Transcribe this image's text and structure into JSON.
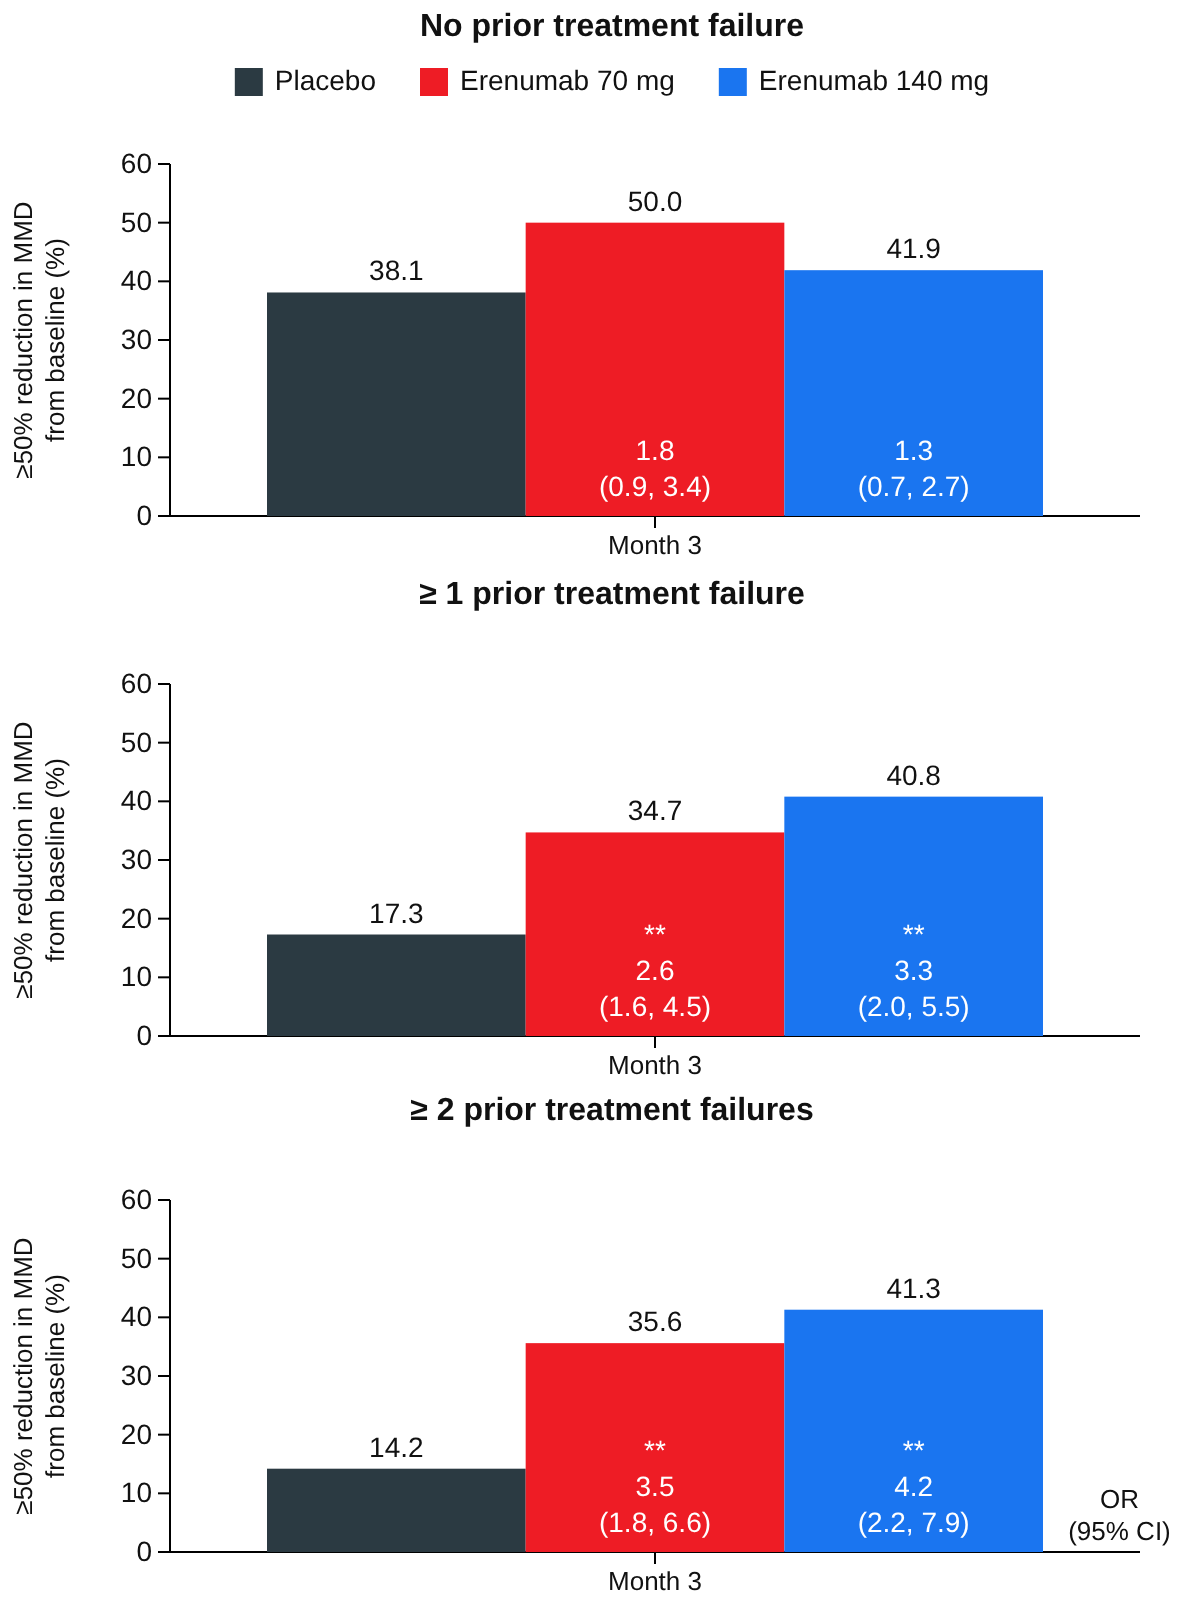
{
  "chart_data": [
    {
      "type": "bar",
      "title": "No prior treatment failure",
      "ylabel": "≥50% reduction in MMD from baseline (%)",
      "categories": [
        "Month 3"
      ],
      "series": [
        {
          "name": "Placebo",
          "color": "#2b3a42",
          "values": [
            38.1
          ]
        },
        {
          "name": "Erenumab 70 mg",
          "color": "#ee1c25",
          "values": [
            50.0
          ],
          "value_labels": [
            "50.0"
          ]
        },
        {
          "name": "Erenumab 140 mg",
          "color": "#1a75f0",
          "values": [
            41.9
          ]
        }
      ],
      "ylim": [
        0,
        60
      ],
      "yticks": [
        0,
        10,
        20,
        30,
        40,
        50,
        60
      ],
      "data_labels": true,
      "legend": "top",
      "annotations": [
        "1.8\n(0.9, 3.4)",
        "1.3\n(0.7, 2.7)"
      ]
    },
    {
      "type": "bar",
      "title": "≥ 1 prior treatment failure",
      "ylabel": "≥50% reduction in MMD from baseline (%)",
      "categories": [
        "Month 3"
      ],
      "series": [
        {
          "color": "#2b3a42",
          "values": [
            17.3
          ]
        },
        {
          "color": "#ee1c25",
          "values": [
            34.7
          ]
        },
        {
          "color": "#1a75f0",
          "values": [
            40.8
          ]
        }
      ],
      "ylim": [
        0,
        60
      ],
      "yticks": [
        0,
        10,
        20,
        30,
        40,
        50,
        60
      ],
      "data_labels": true,
      "annotations": [
        "**\n2.6\n(1.6, 4.5)",
        "**\n3.3\n(2.0, 5.5)"
      ]
    },
    {
      "type": "bar",
      "title": "≥ 2 prior treatment failures",
      "ylabel": "≥50% reduction in MMD from baseline (%)",
      "categories": [
        "Month 3"
      ],
      "series": [
        {
          "color": "#2b3a42",
          "values": [
            14.2
          ]
        },
        {
          "color": "#ee1c25",
          "values": [
            35.6
          ]
        },
        {
          "color": "#1a75f0",
          "values": [
            41.3
          ]
        }
      ],
      "ylim": [
        0,
        60
      ],
      "yticks": [
        0,
        10,
        20,
        30,
        40,
        50,
        60
      ],
      "data_labels": true,
      "annotations": [
        "**\n3.5\n(1.8, 6.6)",
        "**\n4.2\n(2.2, 7.9)",
        "OR\n(95% CI)"
      ]
    }
  ]
}
